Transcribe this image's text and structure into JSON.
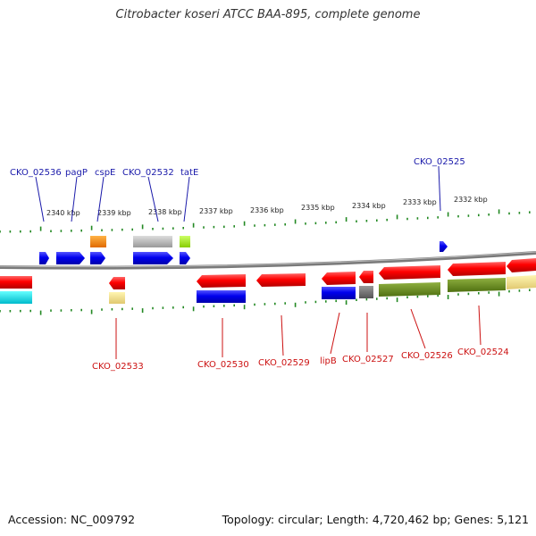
{
  "title": "Citrobacter koseri ATCC BAA-895, complete genome",
  "footer": {
    "accession": "Accession: NC_009792",
    "summary": "Topology: circular; Length: 4,720,462 bp; Genes: 5,121"
  },
  "colors": {
    "forward_label": "#1a1aaa",
    "reverse_label": "#cc1111",
    "backbone": "#888888",
    "ticks": "#228822"
  },
  "scale": {
    "ticks": [
      {
        "label": "2340 kbp"
      },
      {
        "label": "2339 kbp"
      },
      {
        "label": "2338 kbp"
      },
      {
        "label": "2337 kbp"
      },
      {
        "label": "2336 kbp"
      },
      {
        "label": "2335 kbp"
      },
      {
        "label": "2334 kbp"
      },
      {
        "label": "2333 kbp"
      },
      {
        "label": "2332 kbp"
      }
    ]
  },
  "forward_genes": [
    {
      "label": "CKO_02536"
    },
    {
      "label": "pagP"
    },
    {
      "label": "cspE"
    },
    {
      "label": "CKO_02532"
    },
    {
      "label": "tatE"
    },
    {
      "label": "CKO_02525"
    }
  ],
  "reverse_genes": [
    {
      "label": "CKO_02533"
    },
    {
      "label": "CKO_02530"
    },
    {
      "label": "CKO_02529"
    },
    {
      "label": "lipB"
    },
    {
      "label": "CKO_02527"
    },
    {
      "label": "CKO_02526"
    },
    {
      "label": "CKO_02524"
    }
  ]
}
